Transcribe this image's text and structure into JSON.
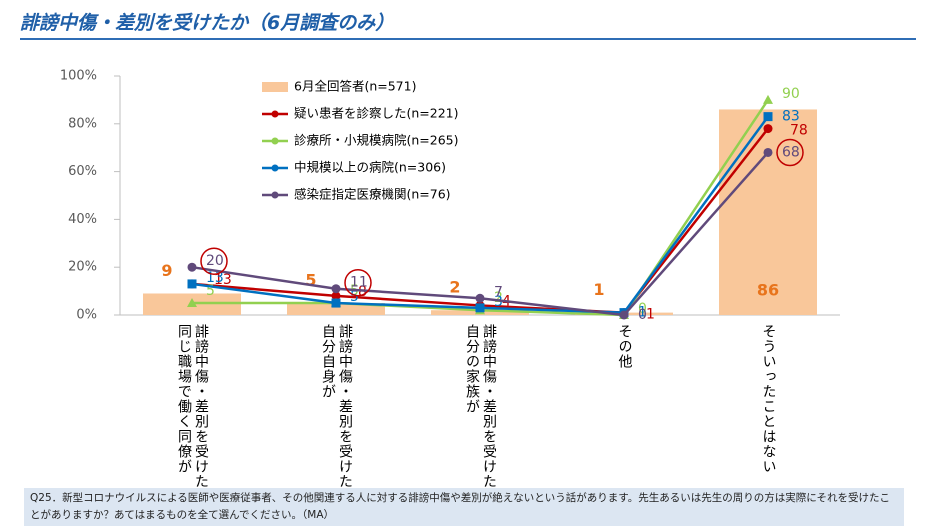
{
  "chart_data": {
    "type": "bar",
    "title": "誹謗中傷・差別を受けたか（6月調査のみ）",
    "categories": [
      "誹謗中傷・差別を受けた\n同じ職場で働く同僚が",
      "誹謗中傷・差別を受けた\n自分自身が",
      "誹謗中傷・差別を受けた\n自分の家族が",
      "その他",
      "そういったことはない"
    ],
    "series": [
      {
        "name": "6月全回答者(n=571)",
        "type": "bar",
        "color": "#f9c79a",
        "label_color": "#e8741c",
        "values": [
          9,
          5,
          2,
          1,
          86
        ]
      },
      {
        "name": "疑い患者を診察した(n=221)",
        "type": "line",
        "color": "#c00000",
        "values": [
          13,
          8,
          4,
          1,
          78
        ]
      },
      {
        "name": "診療所・小規模病院(n=265)",
        "type": "line",
        "color": "#92d050",
        "values": [
          5,
          5,
          2,
          0,
          90
        ]
      },
      {
        "name": "中規模以上の病院(n=306)",
        "type": "line",
        "color": "#0070c0",
        "values": [
          13,
          5,
          3,
          1,
          83
        ]
      },
      {
        "name": "感染症指定医療機関(n=76)",
        "type": "line",
        "color": "#604a7b",
        "values": [
          20,
          11,
          7,
          0,
          68
        ]
      }
    ],
    "ylim": [
      0,
      100
    ],
    "yticks": [
      {
        "value": 0,
        "label": "0%"
      },
      {
        "value": 20,
        "label": "20%"
      },
      {
        "value": 40,
        "label": "40%"
      },
      {
        "value": 60,
        "label": "60%"
      },
      {
        "value": 80,
        "label": "80%"
      },
      {
        "value": 100,
        "label": "100%"
      }
    ],
    "note": "Q25．新型コロナウイルスによる医師や医療従事者、その他関連する人に対する誹謗中傷や差別が絶えないという話があります。先生あるいは先生の周りの方は実際にそれを受けたことがありますか？あてはまるものを全て選んでください。（MA）"
  }
}
